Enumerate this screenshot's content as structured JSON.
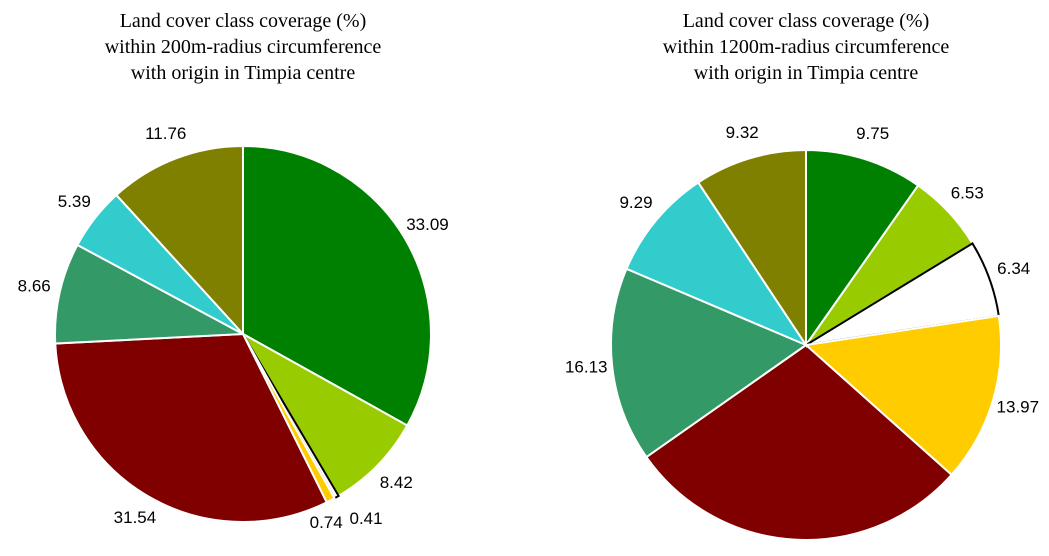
{
  "chart_data": [
    {
      "type": "pie",
      "title": [
        "Land cover class coverage (%)",
        "within 200m-radius circumference",
        "with origin in Timpia centre"
      ],
      "values": [
        33.09,
        8.42,
        0.41,
        0.74,
        31.54,
        8.66,
        5.39,
        11.76
      ],
      "colors": [
        "#008000",
        "#99cc00",
        "#ffffff",
        "#ffcc00",
        "#800000",
        "#339966",
        "#33cccc",
        "#808000"
      ]
    },
    {
      "type": "pie",
      "title": [
        "Land cover class coverage (%)",
        "within 1200m-radius circumference",
        "with origin in Timpia centre"
      ],
      "values": [
        9.75,
        6.53,
        6.34,
        13.97,
        28.67,
        16.13,
        9.29,
        9.32
      ],
      "colors": [
        "#008000",
        "#99cc00",
        "#ffffff",
        "#ffcc00",
        "#800000",
        "#339966",
        "#33cccc",
        "#808000"
      ]
    }
  ]
}
